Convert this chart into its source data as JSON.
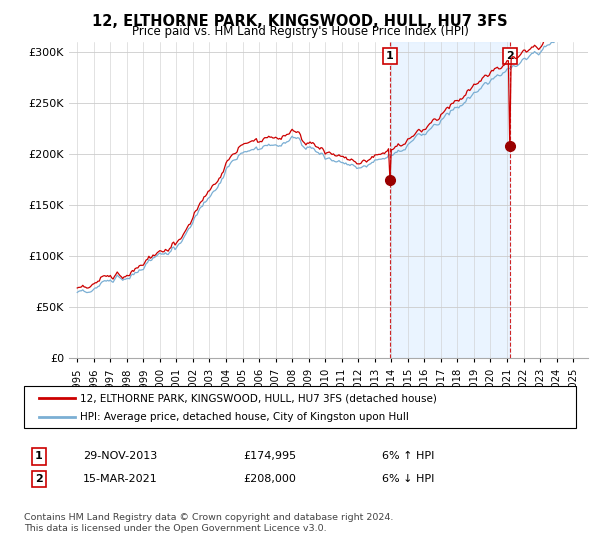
{
  "title": "12, ELTHORNE PARK, KINGSWOOD, HULL, HU7 3FS",
  "subtitle": "Price paid vs. HM Land Registry's House Price Index (HPI)",
  "legend_line1": "12, ELTHORNE PARK, KINGSWOOD, HULL, HU7 3FS (detached house)",
  "legend_line2": "HPI: Average price, detached house, City of Kingston upon Hull",
  "footnote1": "Contains HM Land Registry data © Crown copyright and database right 2024.",
  "footnote2": "This data is licensed under the Open Government Licence v3.0.",
  "transaction1_num": "1",
  "transaction1_date": "29-NOV-2013",
  "transaction1_price": "£174,995",
  "transaction1_hpi": "6% ↑ HPI",
  "transaction2_num": "2",
  "transaction2_date": "15-MAR-2021",
  "transaction2_price": "£208,000",
  "transaction2_hpi": "6% ↓ HPI",
  "hpi_color": "#7bafd4",
  "price_color": "#cc0000",
  "vline_color": "#cc0000",
  "shade_color": "#ddeeff",
  "background_color": "#ffffff",
  "ylim": [
    0,
    310000
  ],
  "yticks": [
    0,
    50000,
    100000,
    150000,
    200000,
    250000,
    300000
  ]
}
